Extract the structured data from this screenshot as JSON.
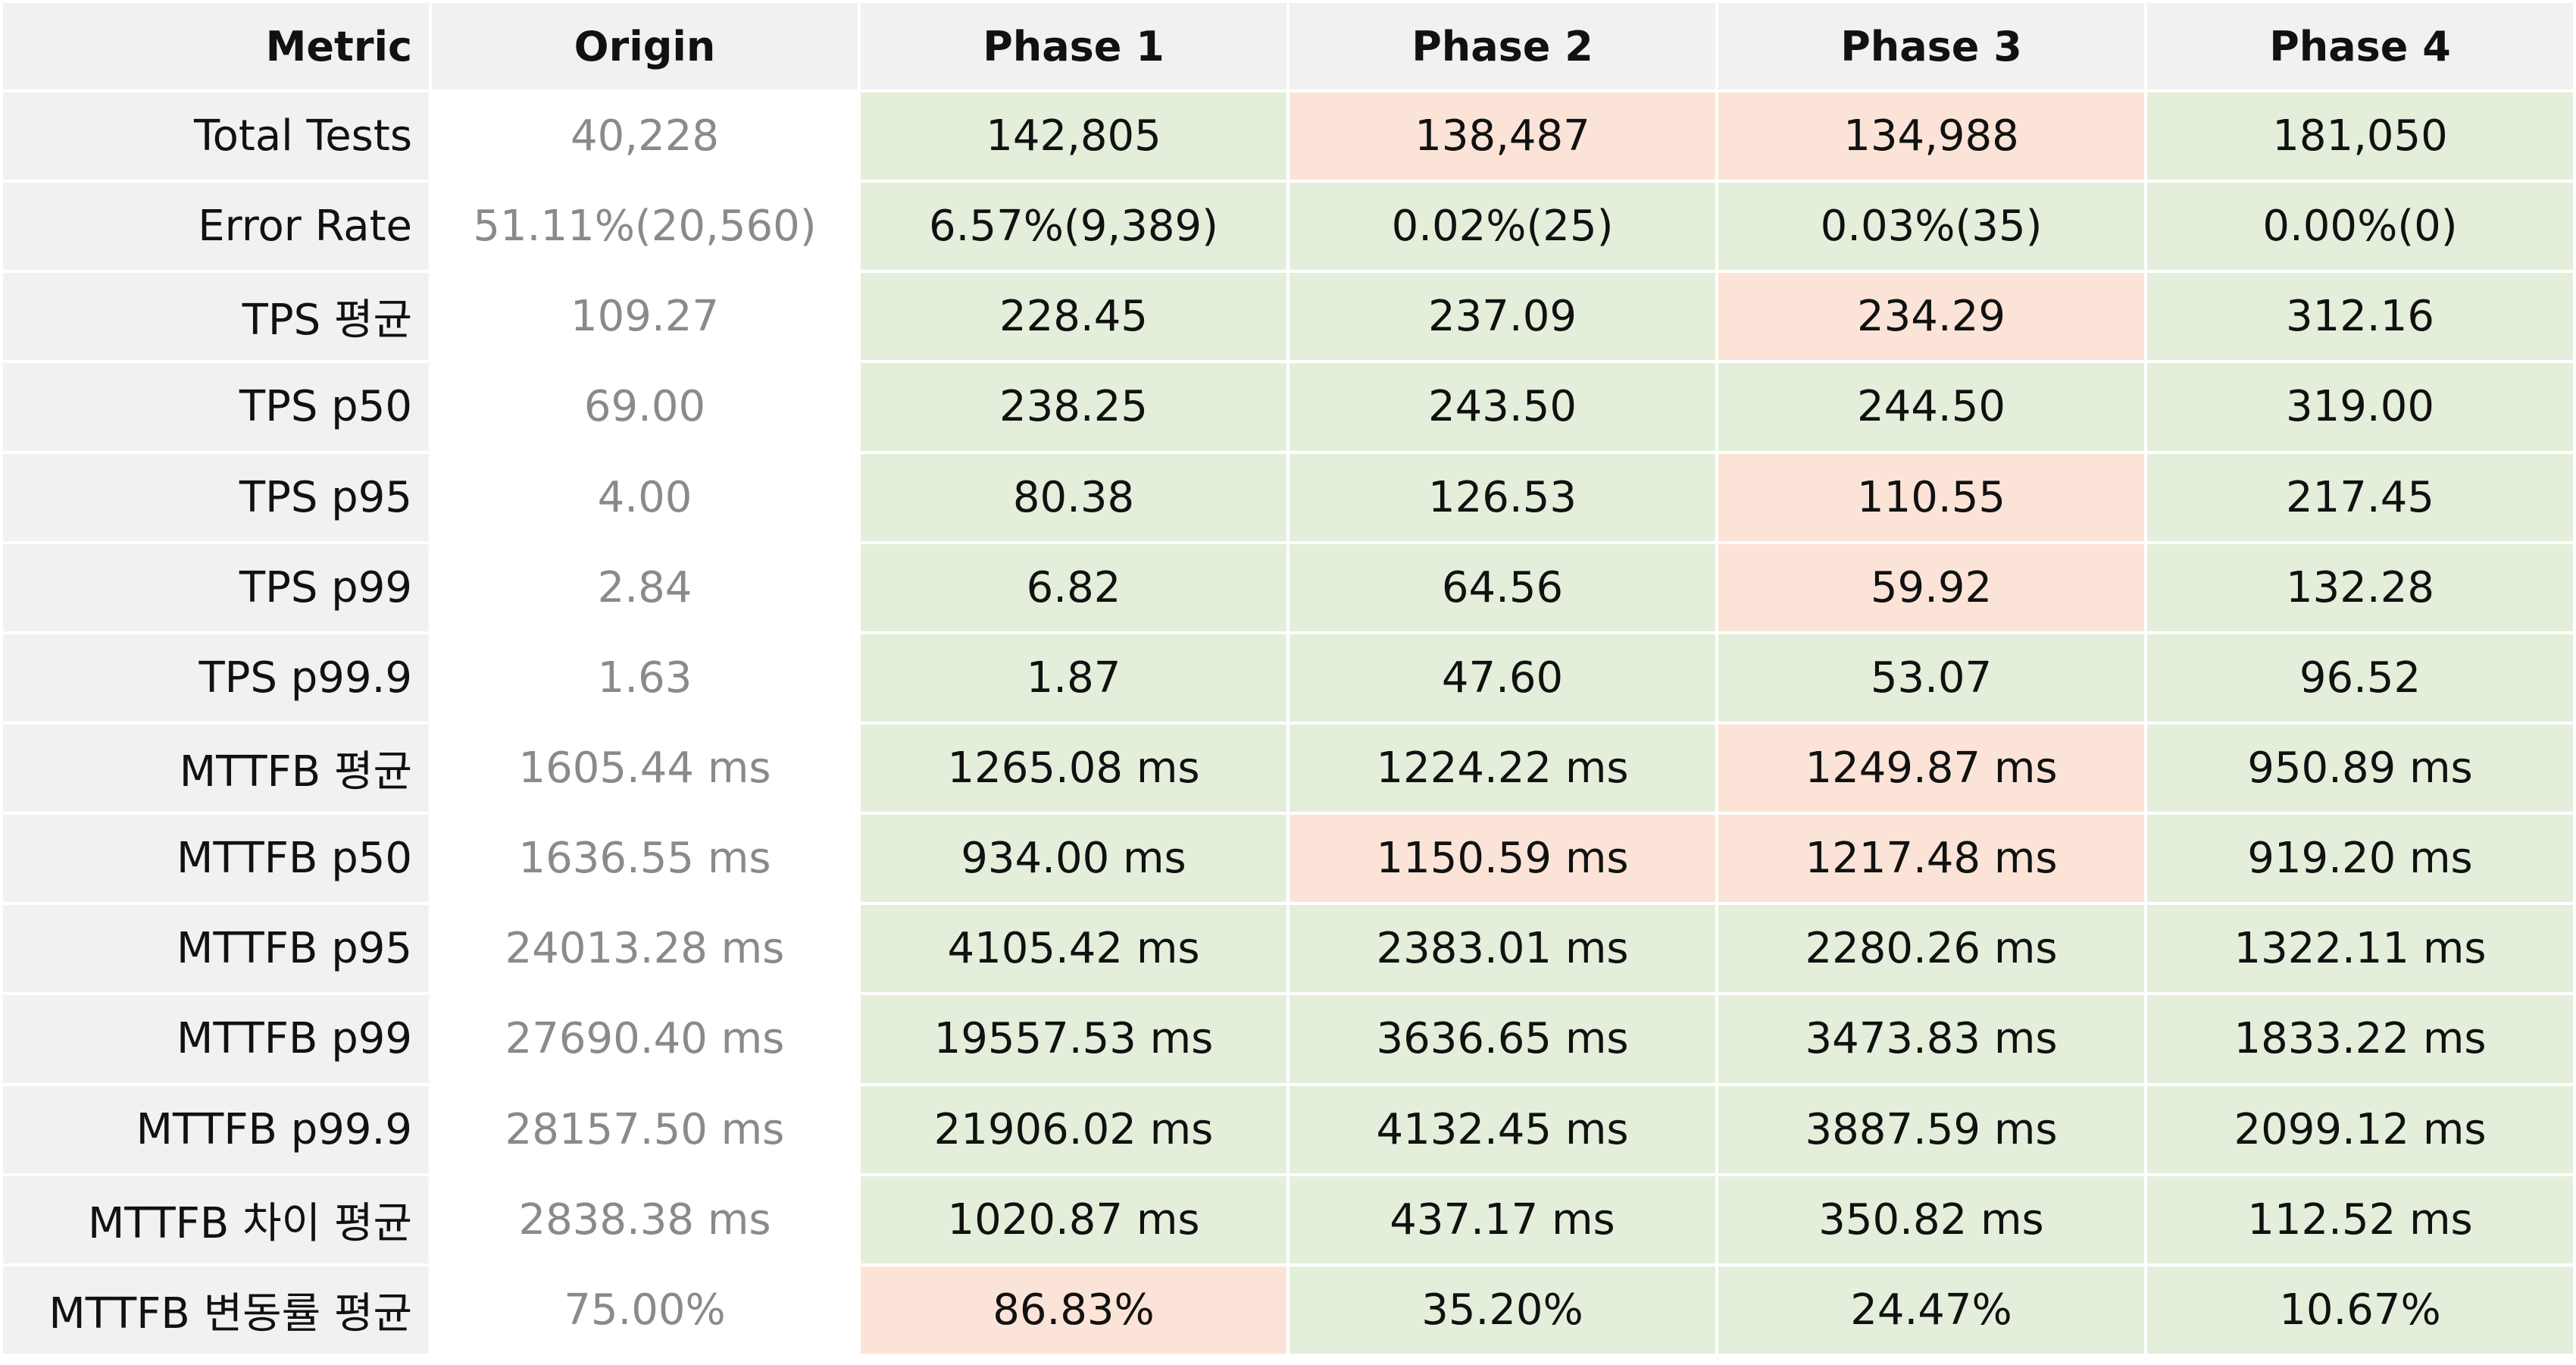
{
  "colors": {
    "header_bg": "#f1f1f1",
    "improved": "#e3efdb",
    "regressed": "#fbe4d7",
    "origin_text": "#8a8a8a"
  },
  "columns": [
    "Metric",
    "Origin",
    "Phase 1",
    "Phase 2",
    "Phase 3",
    "Phase 4"
  ],
  "rows": [
    {
      "metric": "Total Tests",
      "origin": "40,228",
      "phases": [
        {
          "value": "142,805",
          "status": "good"
        },
        {
          "value": "138,487",
          "status": "bad"
        },
        {
          "value": "134,988",
          "status": "bad"
        },
        {
          "value": "181,050",
          "status": "good"
        }
      ]
    },
    {
      "metric": "Error Rate",
      "origin": "51.11%(20,560)",
      "phases": [
        {
          "value": "6.57%(9,389)",
          "status": "good"
        },
        {
          "value": "0.02%(25)",
          "status": "good"
        },
        {
          "value": "0.03%(35)",
          "status": "good"
        },
        {
          "value": "0.00%(0)",
          "status": "good"
        }
      ]
    },
    {
      "metric": "TPS 평균",
      "origin": "109.27",
      "phases": [
        {
          "value": "228.45",
          "status": "good"
        },
        {
          "value": "237.09",
          "status": "good"
        },
        {
          "value": "234.29",
          "status": "bad"
        },
        {
          "value": "312.16",
          "status": "good"
        }
      ]
    },
    {
      "metric": "TPS p50",
      "origin": "69.00",
      "phases": [
        {
          "value": "238.25",
          "status": "good"
        },
        {
          "value": "243.50",
          "status": "good"
        },
        {
          "value": "244.50",
          "status": "good"
        },
        {
          "value": "319.00",
          "status": "good"
        }
      ]
    },
    {
      "metric": "TPS p95",
      "origin": "4.00",
      "phases": [
        {
          "value": "80.38",
          "status": "good"
        },
        {
          "value": "126.53",
          "status": "good"
        },
        {
          "value": "110.55",
          "status": "bad"
        },
        {
          "value": "217.45",
          "status": "good"
        }
      ]
    },
    {
      "metric": "TPS p99",
      "origin": "2.84",
      "phases": [
        {
          "value": "6.82",
          "status": "good"
        },
        {
          "value": "64.56",
          "status": "good"
        },
        {
          "value": "59.92",
          "status": "bad"
        },
        {
          "value": "132.28",
          "status": "good"
        }
      ]
    },
    {
      "metric": "TPS p99.9",
      "origin": "1.63",
      "phases": [
        {
          "value": "1.87",
          "status": "good"
        },
        {
          "value": "47.60",
          "status": "good"
        },
        {
          "value": "53.07",
          "status": "good"
        },
        {
          "value": "96.52",
          "status": "good"
        }
      ]
    },
    {
      "metric": "MTTFB 평균",
      "origin": "1605.44 ms",
      "phases": [
        {
          "value": "1265.08 ms",
          "status": "good"
        },
        {
          "value": "1224.22 ms",
          "status": "good"
        },
        {
          "value": "1249.87 ms",
          "status": "bad"
        },
        {
          "value": "950.89 ms",
          "status": "good"
        }
      ]
    },
    {
      "metric": "MTTFB p50",
      "origin": "1636.55 ms",
      "phases": [
        {
          "value": "934.00 ms",
          "status": "good"
        },
        {
          "value": "1150.59 ms",
          "status": "bad"
        },
        {
          "value": "1217.48 ms",
          "status": "bad"
        },
        {
          "value": "919.20 ms",
          "status": "good"
        }
      ]
    },
    {
      "metric": "MTTFB p95",
      "origin": "24013.28 ms",
      "phases": [
        {
          "value": "4105.42 ms",
          "status": "good"
        },
        {
          "value": "2383.01 ms",
          "status": "good"
        },
        {
          "value": "2280.26 ms",
          "status": "good"
        },
        {
          "value": "1322.11 ms",
          "status": "good"
        }
      ]
    },
    {
      "metric": "MTTFB p99",
      "origin": "27690.40 ms",
      "phases": [
        {
          "value": "19557.53 ms",
          "status": "good"
        },
        {
          "value": "3636.65 ms",
          "status": "good"
        },
        {
          "value": "3473.83 ms",
          "status": "good"
        },
        {
          "value": "1833.22 ms",
          "status": "good"
        }
      ]
    },
    {
      "metric": "MTTFB p99.9",
      "origin": "28157.50 ms",
      "phases": [
        {
          "value": "21906.02 ms",
          "status": "good"
        },
        {
          "value": "4132.45 ms",
          "status": "good"
        },
        {
          "value": "3887.59 ms",
          "status": "good"
        },
        {
          "value": "2099.12 ms",
          "status": "good"
        }
      ]
    },
    {
      "metric": "MTTFB 차이 평균",
      "origin": "2838.38 ms",
      "phases": [
        {
          "value": "1020.87 ms",
          "status": "good"
        },
        {
          "value": "437.17 ms",
          "status": "good"
        },
        {
          "value": "350.82 ms",
          "status": "good"
        },
        {
          "value": "112.52 ms",
          "status": "good"
        }
      ]
    },
    {
      "metric": "MTTFB 변동률 평균",
      "origin": "75.00%",
      "phases": [
        {
          "value": "86.83%",
          "status": "bad"
        },
        {
          "value": "35.20%",
          "status": "good"
        },
        {
          "value": "24.47%",
          "status": "good"
        },
        {
          "value": "10.67%",
          "status": "good"
        }
      ]
    }
  ]
}
